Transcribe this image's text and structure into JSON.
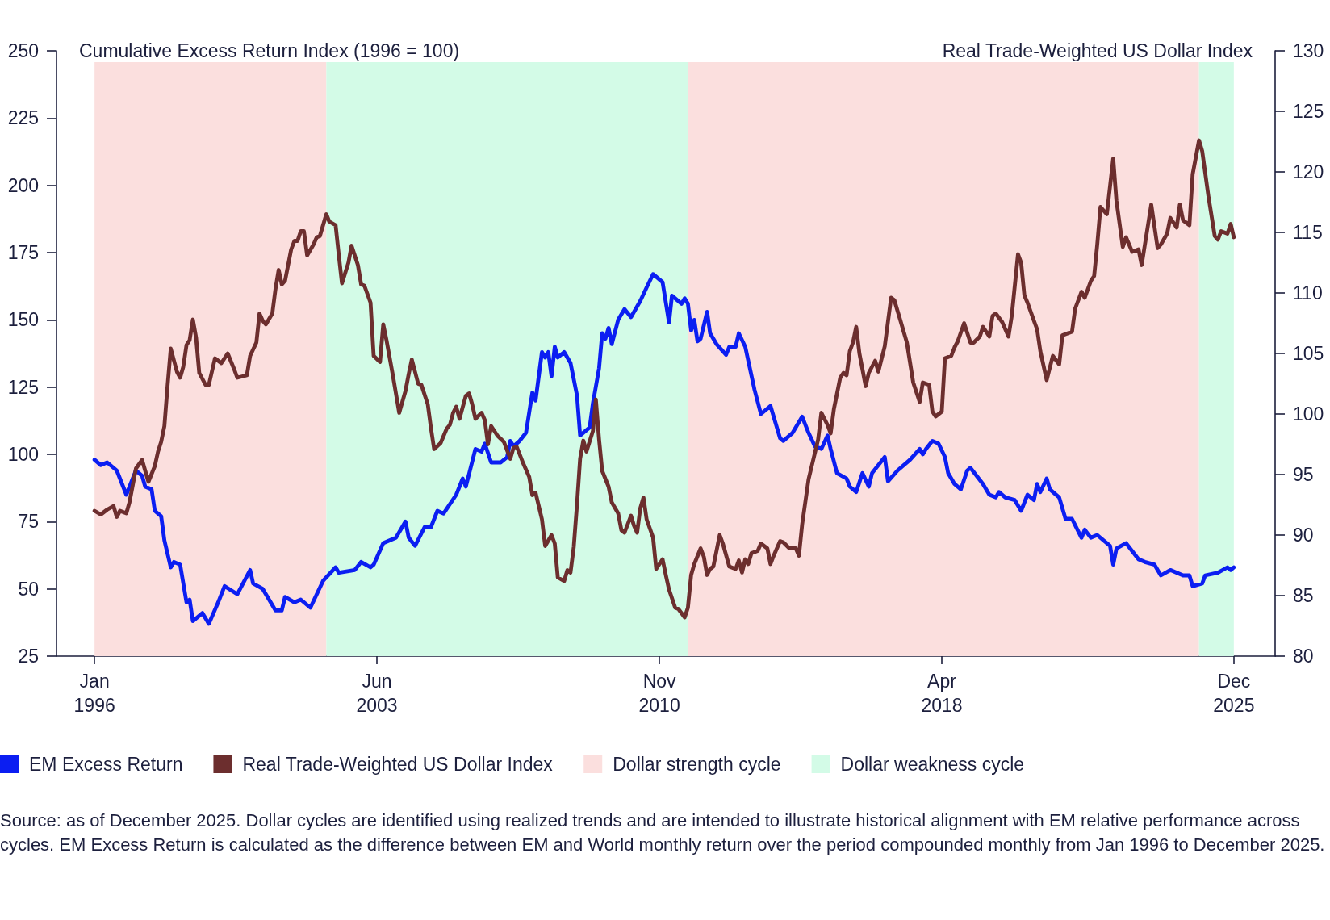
{
  "chart_data": {
    "type": "line",
    "ylabel": "Cumulative Excess Return Index (1996 = 100)",
    "y2label": "Real Trade-Weighted US Dollar Index",
    "xlim": [
      "1995-01",
      "2027-01"
    ],
    "xticks": [
      {
        "value": "1996-01",
        "label": "Jan 1996"
      },
      {
        "value": "2003-06",
        "label": "Jun 2003"
      },
      {
        "value": "2010-11",
        "label": "Nov 2010"
      },
      {
        "value": "2018-04",
        "label": "Apr 2018"
      },
      {
        "value": "2025-12",
        "label": "Dec 2025"
      }
    ],
    "ylim": [
      25,
      250
    ],
    "yticks": [
      25,
      50,
      75,
      100,
      125,
      150,
      175,
      200,
      225,
      250
    ],
    "y2lim": [
      80,
      130
    ],
    "y2ticks": [
      80,
      85,
      90,
      95,
      100,
      105,
      110,
      115,
      120,
      125,
      130
    ],
    "legend": "bottom",
    "series": [
      {
        "name": "EM Excess Return",
        "color": "#0b1ef2",
        "x": [
          "1996-01",
          "1996-03",
          "1996-05",
          "1996-08",
          "1996-11",
          "1997-02",
          "1997-04",
          "1997-05",
          "1997-07",
          "1997-08",
          "1997-10",
          "1997-11",
          "1998-01",
          "1998-02",
          "1998-04",
          "1998-06",
          "1998-07",
          "1998-08",
          "1998-11",
          "1999-01",
          "1999-04",
          "1999-06",
          "1999-10",
          "2000-02",
          "2000-03",
          "2000-06",
          "2000-10",
          "2000-12",
          "2001-01",
          "2001-04",
          "2001-06",
          "2001-09",
          "2002-01",
          "2002-05",
          "2002-06",
          "2002-11",
          "2003-01",
          "2003-04",
          "2003-05",
          "2003-08",
          "2003-12",
          "2004-03",
          "2004-04",
          "2004-06",
          "2004-09",
          "2004-11",
          "2005-01",
          "2005-03",
          "2005-07",
          "2005-09",
          "2005-10",
          "2006-01",
          "2006-03",
          "2006-04",
          "2006-06",
          "2006-09",
          "2006-11",
          "2006-12",
          "2007-01",
          "2007-03",
          "2007-05",
          "2007-07",
          "2007-08",
          "2007-10",
          "2007-11",
          "2007-12",
          "2008-01",
          "2008-02",
          "2008-03",
          "2008-05",
          "2008-07",
          "2008-09",
          "2008-10",
          "2009-01",
          "2009-02",
          "2009-04",
          "2009-05",
          "2009-06",
          "2009-07",
          "2009-08",
          "2009-10",
          "2009-12",
          "2010-02",
          "2010-05",
          "2010-07",
          "2010-09",
          "2010-12",
          "2011-02",
          "2011-03",
          "2011-06",
          "2011-07",
          "2011-08",
          "2011-09",
          "2011-10",
          "2011-11",
          "2011-12",
          "2012-02",
          "2012-03",
          "2012-05",
          "2012-08",
          "2012-09",
          "2012-11",
          "2012-12",
          "2013-02",
          "2013-05",
          "2013-07",
          "2013-10",
          "2014-01",
          "2014-02",
          "2014-05",
          "2014-08",
          "2014-10",
          "2014-12",
          "2015-02",
          "2015-04",
          "2015-05",
          "2015-07",
          "2015-10",
          "2015-11",
          "2016-01",
          "2016-03",
          "2016-05",
          "2016-06",
          "2016-10",
          "2016-11",
          "2017-02",
          "2017-06",
          "2017-09",
          "2017-10",
          "2017-11",
          "2018-01",
          "2018-03",
          "2018-05",
          "2018-06",
          "2018-08",
          "2018-10",
          "2018-12",
          "2019-01",
          "2019-05",
          "2019-07",
          "2019-09",
          "2019-10",
          "2019-12",
          "2020-03",
          "2020-05",
          "2020-07",
          "2020-09",
          "2020-10",
          "2020-11",
          "2021-01",
          "2021-02",
          "2021-05",
          "2021-07",
          "2021-09",
          "2021-12",
          "2022-01",
          "2022-03",
          "2022-05",
          "2022-09",
          "2022-10",
          "2022-11",
          "2023-02",
          "2023-06",
          "2023-08",
          "2023-11",
          "2024-01",
          "2024-04",
          "2024-08",
          "2024-10",
          "2024-11",
          "2025-02",
          "2025-03",
          "2025-07",
          "2025-10",
          "2025-11",
          "2025-12"
        ],
        "values": [
          98,
          96,
          97,
          94,
          85,
          94,
          92,
          88,
          87,
          79,
          77,
          68,
          58,
          60,
          59,
          45,
          46,
          38,
          41,
          37,
          45,
          51,
          48,
          57,
          52,
          50,
          42,
          42,
          47,
          45,
          46,
          43,
          53,
          58,
          56,
          57,
          60,
          58,
          59,
          67,
          69,
          75,
          69,
          66,
          73,
          73,
          79,
          78,
          85,
          91,
          88,
          102,
          101,
          104,
          97,
          97,
          99,
          105,
          103,
          105,
          108,
          123,
          120,
          138,
          136,
          138,
          129,
          140,
          136,
          138,
          134,
          122,
          107,
          110,
          119,
          132,
          145,
          143,
          147,
          141,
          150,
          154,
          151,
          157,
          162,
          167,
          164,
          149,
          159,
          156,
          158,
          156,
          146,
          150,
          142,
          143,
          153,
          145,
          141,
          137,
          140,
          140,
          145,
          140,
          124,
          115,
          118,
          106,
          105,
          108,
          114,
          108,
          103,
          102,
          107,
          102,
          93,
          91,
          88,
          86,
          93,
          88,
          93,
          99,
          90,
          94,
          98,
          102,
          100,
          102,
          105,
          104,
          99,
          93,
          89,
          87,
          94,
          95,
          89,
          85,
          84,
          86,
          84,
          83,
          79,
          85,
          83,
          89,
          86,
          91,
          87,
          84,
          76,
          76,
          69,
          72,
          69,
          70,
          66,
          59,
          65,
          67,
          61,
          60,
          59,
          55,
          57,
          55,
          55,
          51,
          52,
          55,
          56,
          58,
          57,
          58
        ]
      },
      {
        "name": "Real Trade-Weighted US Dollar Index",
        "color": "#6c2e2e",
        "axis": "y2",
        "x": [
          "1996-01",
          "1996-03",
          "1996-05",
          "1996-07",
          "1996-08",
          "1996-09",
          "1996-11",
          "1996-12",
          "1997-02",
          "1997-04",
          "1997-06",
          "1997-08",
          "1997-09",
          "1997-10",
          "1997-11",
          "1997-12",
          "1998-01",
          "1998-03",
          "1998-04",
          "1998-05",
          "1998-06",
          "1998-07",
          "1998-08",
          "1998-09",
          "1998-10",
          "1998-12",
          "1999-01",
          "1999-03",
          "1999-05",
          "1999-07",
          "1999-09",
          "1999-10",
          "2000-01",
          "2000-02",
          "2000-04",
          "2000-05",
          "2000-06",
          "2000-07",
          "2000-09",
          "2000-10",
          "2000-11",
          "2000-12",
          "2001-01",
          "2001-03",
          "2001-04",
          "2001-05",
          "2001-06",
          "2001-07",
          "2001-08",
          "2001-10",
          "2001-11",
          "2001-12",
          "2002-02",
          "2002-03",
          "2002-05",
          "2002-06",
          "2002-07",
          "2002-09",
          "2002-10",
          "2002-12",
          "2003-01",
          "2003-02",
          "2003-04",
          "2003-05",
          "2003-07",
          "2003-08",
          "2003-09",
          "2003-11",
          "2004-01",
          "2004-03",
          "2004-04",
          "2004-05",
          "2004-07",
          "2004-08",
          "2004-10",
          "2004-11",
          "2004-12",
          "2005-02",
          "2005-04",
          "2005-05",
          "2005-06",
          "2005-07",
          "2005-08",
          "2005-10",
          "2005-11",
          "2005-12",
          "2006-01",
          "2006-03",
          "2006-04",
          "2006-05",
          "2006-06",
          "2006-08",
          "2006-10",
          "2006-12",
          "2007-01",
          "2007-02",
          "2007-04",
          "2007-06",
          "2007-07",
          "2007-08",
          "2007-10",
          "2007-11",
          "2008-01",
          "2008-02",
          "2008-03",
          "2008-05",
          "2008-06",
          "2008-07",
          "2008-08",
          "2008-09",
          "2008-10",
          "2008-11",
          "2008-12",
          "2009-02",
          "2009-03",
          "2009-04",
          "2009-05",
          "2009-07",
          "2009-08",
          "2009-10",
          "2009-11",
          "2009-12",
          "2010-02",
          "2010-03",
          "2010-04",
          "2010-05",
          "2010-06",
          "2010-07",
          "2010-09",
          "2010-10",
          "2010-12",
          "2011-01",
          "2011-02",
          "2011-04",
          "2011-05",
          "2011-07",
          "2011-08",
          "2011-09",
          "2011-10",
          "2011-12",
          "2012-01",
          "2012-02",
          "2012-03",
          "2012-04",
          "2012-06",
          "2012-07",
          "2012-09",
          "2012-11",
          "2012-12",
          "2013-01",
          "2013-02",
          "2013-03",
          "2013-04",
          "2013-06",
          "2013-07",
          "2013-09",
          "2013-10",
          "2013-11",
          "2014-01",
          "2014-02",
          "2014-04",
          "2014-06",
          "2014-07",
          "2014-08",
          "2014-10",
          "2015-01",
          "2015-02",
          "2015-04",
          "2015-05",
          "2015-06",
          "2015-08",
          "2015-09",
          "2015-10",
          "2015-11",
          "2015-12",
          "2016-01",
          "2016-02",
          "2016-04",
          "2016-05",
          "2016-07",
          "2016-08",
          "2016-10",
          "2016-12",
          "2017-01",
          "2017-03",
          "2017-05",
          "2017-07",
          "2017-09",
          "2017-10",
          "2017-12",
          "2018-01",
          "2018-02",
          "2018-04",
          "2018-05",
          "2018-07",
          "2018-08",
          "2018-09",
          "2018-11",
          "2019-01",
          "2019-02",
          "2019-04",
          "2019-05",
          "2019-07",
          "2019-08",
          "2019-09",
          "2019-11",
          "2020-01",
          "2020-02",
          "2020-04",
          "2020-05",
          "2020-06",
          "2020-07",
          "2020-09",
          "2020-10",
          "2020-11",
          "2021-01",
          "2021-03",
          "2021-05",
          "2021-06",
          "2021-09",
          "2021-10",
          "2021-12",
          "2022-01",
          "2022-03",
          "2022-04",
          "2022-05",
          "2022-06",
          "2022-08",
          "2022-10",
          "2022-11",
          "2023-01",
          "2023-02",
          "2023-04",
          "2023-06",
          "2023-07",
          "2023-08",
          "2023-10",
          "2023-12",
          "2024-01",
          "2024-03",
          "2024-04",
          "2024-06",
          "2024-07",
          "2024-08",
          "2024-10",
          "2024-11",
          "2025-01",
          "2025-02",
          "2025-04",
          "2025-06",
          "2025-07",
          "2025-08",
          "2025-10",
          "2025-11",
          "2025-12"
        ],
        "values": [
          92.0,
          91.7,
          92.1,
          92.4,
          91.5,
          92.0,
          91.8,
          92.7,
          95.5,
          96.2,
          94.4,
          95.7,
          96.9,
          97.7,
          99.0,
          102.3,
          105.4,
          103.5,
          103.0,
          103.9,
          105.7,
          106.1,
          107.8,
          106.3,
          103.4,
          102.4,
          102.4,
          104.6,
          104.2,
          105.0,
          103.7,
          103.0,
          103.2,
          104.8,
          105.9,
          108.3,
          107.7,
          107.4,
          108.3,
          110.3,
          111.9,
          110.7,
          111.0,
          113.6,
          114.3,
          114.3,
          115.1,
          115.1,
          113.1,
          114.0,
          114.6,
          114.7,
          116.5,
          115.9,
          115.6,
          113.1,
          110.8,
          112.5,
          113.9,
          112.3,
          110.7,
          110.6,
          109.2,
          104.8,
          104.3,
          107.4,
          106.1,
          103.2,
          100.1,
          101.9,
          103.3,
          104.5,
          102.5,
          102.4,
          100.8,
          98.8,
          97.1,
          97.6,
          98.8,
          99.1,
          100.1,
          100.6,
          99.6,
          101.5,
          101.7,
          100.8,
          99.6,
          100.1,
          99.5,
          97.5,
          99.0,
          98.2,
          97.7,
          96.3,
          97.2,
          97.3,
          96.0,
          94.8,
          93.3,
          93.5,
          91.3,
          89.1,
          90.0,
          89.3,
          86.5,
          86.2,
          87.1,
          86.9,
          89.0,
          92.5,
          96.3,
          97.8,
          96.9,
          98.6,
          101.2,
          97.9,
          95.3,
          94.0,
          92.7,
          91.8,
          90.4,
          90.2,
          91.6,
          90.8,
          90.2,
          92.2,
          93.1,
          91.3,
          89.8,
          87.2,
          88.0,
          86.7,
          85.5,
          84.0,
          83.9,
          83.2,
          84.0,
          86.7,
          87.6,
          88.9,
          88.2,
          86.7,
          87.2,
          87.4,
          90.0,
          89.3,
          87.4,
          87.2,
          87.9,
          86.9,
          88.0,
          87.6,
          88.5,
          88.7,
          89.3,
          88.9,
          87.6,
          88.3,
          89.5,
          89.4,
          88.9,
          88.9,
          88.3,
          90.9,
          94.6,
          97.9,
          100.1,
          99.1,
          98.4,
          100.4,
          103.0,
          103.4,
          103.2,
          105.2,
          105.9,
          107.2,
          105.0,
          102.3,
          103.4,
          104.4,
          103.5,
          105.6,
          109.6,
          109.4,
          107.7,
          105.9,
          102.6,
          101.0,
          102.6,
          102.4,
          100.2,
          99.8,
          100.2,
          104.6,
          104.8,
          105.5,
          106.0,
          107.5,
          105.9,
          105.9,
          106.4,
          107.2,
          106.4,
          108.1,
          108.3,
          107.6,
          106.4,
          108.1,
          113.2,
          112.5,
          109.8,
          109.2,
          107.7,
          107.0,
          105.2,
          102.8,
          104.8,
          104.1,
          106.5,
          106.8,
          108.7,
          110.1,
          109.6,
          111.0,
          111.4,
          114.0,
          117.1,
          116.5,
          121.1,
          117.6,
          113.8,
          114.6,
          113.4,
          113.6,
          112.3,
          114.0,
          117.3,
          113.7,
          114.0,
          114.9,
          116.2,
          115.4,
          117.3,
          116.0,
          115.6,
          119.8,
          122.6,
          121.7,
          118.0,
          114.7,
          114.4,
          115.1,
          114.9,
          115.7,
          114.6
        ]
      }
    ],
    "bands": [
      {
        "axis": "x",
        "from": "1996-01",
        "to": "2002-02",
        "label": "Dollar strength cycle",
        "color": "#fbdfde"
      },
      {
        "axis": "x",
        "from": "2002-02",
        "to": "2011-08",
        "label": "Dollar weakness cycle",
        "color": "#d3fbe7"
      },
      {
        "axis": "x",
        "from": "2011-08",
        "to": "2025-01",
        "color": "#fbdfde"
      },
      {
        "axis": "x",
        "from": "2025-01",
        "to": "2025-12",
        "color": "#d3fbe7"
      }
    ],
    "annotations": [
      "Source: as of December 2025. Dollar cycles are identified using realized trends and are intended to illustrate historical alignment with EM relative performance across cycles. EM Excess Return is calculated as the difference between EM and World monthly return over the period compounded monthly from Jan 1996 to December 2025."
    ]
  }
}
